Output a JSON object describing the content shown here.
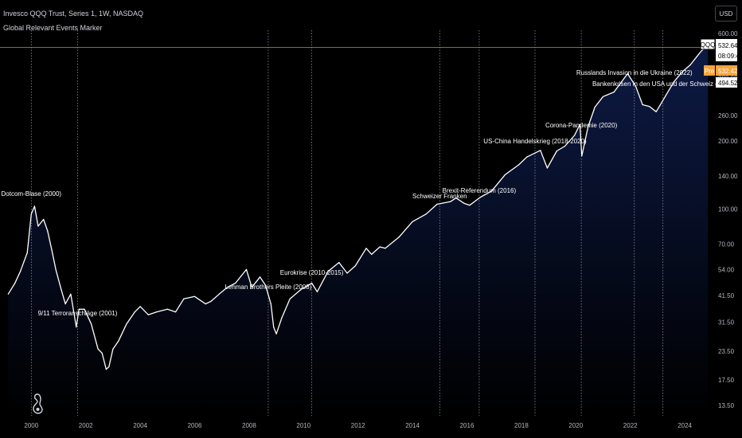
{
  "header": {
    "title": "Invesco QQQ Trust, Series 1, 1W, NASDAQ",
    "indicator": "Global Relevant Events Marker"
  },
  "currency_button": "USD",
  "badges": {
    "symbol": "QQQ",
    "price": "532.64",
    "countdown": "08:09:47",
    "pre_label": "Pre",
    "pre_price": "532.42",
    "level_price": "494.52"
  },
  "colors": {
    "line": "#ffffff",
    "area_top": "#0d1a45",
    "background": "#000000",
    "event_line": "#9aa0ad",
    "price_line": "#d08a2a",
    "pre_badge": "#f7a33b"
  },
  "chart_data": {
    "type": "area",
    "scale": "log",
    "x_ticks": [
      "2000",
      "2002",
      "2004",
      "2006",
      "2008",
      "2010",
      "2012",
      "2014",
      "2016",
      "2018",
      "2020",
      "2022",
      "2024"
    ],
    "y_ticks": [
      "600.00",
      "500.00",
      "380.00",
      "260.00",
      "200.00",
      "140.00",
      "100.00",
      "70.00",
      "54.00",
      "41.50",
      "31.50",
      "23.50",
      "17.50",
      "13.50"
    ],
    "ylim": [
      12.5,
      620
    ],
    "xlim": [
      1998.85,
      2025.05
    ],
    "x": [
      1999.15,
      1999.4,
      1999.6,
      1999.85,
      2000.0,
      2000.12,
      2000.25,
      2000.45,
      2000.6,
      2000.75,
      2000.9,
      2001.1,
      2001.25,
      2001.45,
      2001.65,
      2001.75,
      2001.95,
      2002.2,
      2002.45,
      2002.6,
      2002.75,
      2002.85,
      2003.0,
      2003.2,
      2003.5,
      2003.8,
      2004.0,
      2004.3,
      2004.6,
      2005.0,
      2005.3,
      2005.6,
      2006.0,
      2006.4,
      2006.6,
      2006.9,
      2007.2,
      2007.5,
      2007.9,
      2008.1,
      2008.4,
      2008.6,
      2008.8,
      2008.9,
      2009.0,
      2009.2,
      2009.5,
      2009.9,
      2010.3,
      2010.5,
      2010.9,
      2011.3,
      2011.6,
      2011.9,
      2012.3,
      2012.5,
      2012.8,
      2013.0,
      2013.5,
      2014.0,
      2014.5,
      2014.9,
      2015.4,
      2015.6,
      2015.9,
      2016.1,
      2016.5,
      2016.9,
      2017.4,
      2017.9,
      2018.2,
      2018.7,
      2018.95,
      2019.3,
      2019.6,
      2019.95,
      2020.15,
      2020.22,
      2020.45,
      2020.7,
      2021.0,
      2021.4,
      2021.9,
      2022.2,
      2022.45,
      2022.7,
      2022.95,
      2023.3,
      2023.6,
      2023.9,
      2024.2,
      2024.45,
      2024.6,
      2024.85
    ],
    "y": [
      42,
      47,
      53,
      64,
      95,
      103,
      84,
      90,
      80,
      66,
      54,
      44,
      38,
      42,
      30,
      36,
      36,
      31,
      24,
      23,
      19.5,
      20,
      24,
      26,
      31,
      35,
      37,
      34,
      35,
      36,
      35,
      40,
      41,
      38,
      39,
      42,
      45,
      47,
      54,
      45,
      50,
      46,
      38,
      30,
      28,
      33,
      40,
      44,
      47,
      43,
      53,
      58,
      52,
      56,
      67,
      63,
      68,
      67,
      75,
      88,
      95,
      105,
      108,
      112,
      106,
      104,
      113,
      120,
      142,
      157,
      170,
      182,
      152,
      181,
      190,
      212,
      237,
      172,
      232,
      283,
      315,
      330,
      398,
      350,
      290,
      285,
      270,
      318,
      366,
      405,
      435,
      475,
      500,
      532
    ]
  },
  "events": [
    {
      "x": 2000.0,
      "label": "Dotcom-Blase (2000)"
    },
    {
      "x": 2001.7,
      "label": "9/11 Terroranschläge (2001)"
    },
    {
      "x": 2008.7,
      "label": "Lehman Brothers Pleite (2008)"
    },
    {
      "x": 2010.3,
      "label": "Eurokrise (2010-2015)"
    },
    {
      "x": 2015.0,
      "label": "Schweizer Franken"
    },
    {
      "x": 2016.45,
      "label": "Brexit-Referendum (2016)"
    },
    {
      "x": 2018.5,
      "label": "US-China Handelskrieg (2018-2020)"
    },
    {
      "x": 2020.2,
      "label": "Corona-Pandemie (2020)"
    },
    {
      "x": 2022.15,
      "label": "Russlands Invasion in die Ukraine (2022)"
    },
    {
      "x": 2023.2,
      "label": "Bankenkrisen in den USA und der Schweiz (2023)"
    }
  ]
}
